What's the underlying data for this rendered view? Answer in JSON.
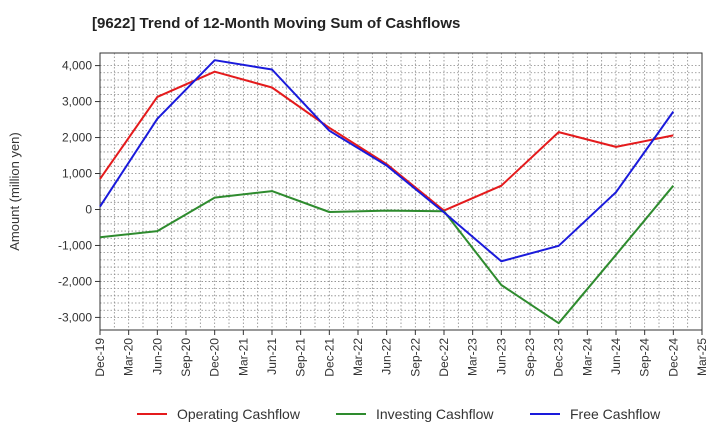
{
  "chart_data": {
    "type": "line",
    "title": "[9622]  Trend of 12-Month Moving Sum of Cashflows",
    "ylabel": "Amount (million yen)",
    "xlabel": "",
    "ylim": [
      -3350,
      4350
    ],
    "yticks": [
      4000,
      3000,
      2000,
      1000,
      0,
      -1000,
      -2000,
      -3000
    ],
    "ytick_labels": [
      "4,000",
      "3,000",
      "2,000",
      "1,000",
      "0",
      "-1,000",
      "-2,000",
      "-3,000"
    ],
    "categories": [
      "Dec-19",
      "Mar-20",
      "Jun-20",
      "Sep-20",
      "Dec-20",
      "Mar-21",
      "Jun-21",
      "Sep-21",
      "Dec-21",
      "Mar-22",
      "Jun-22",
      "Sep-22",
      "Dec-22",
      "Mar-23",
      "Jun-23",
      "Sep-23",
      "Dec-23",
      "Mar-24",
      "Jun-24",
      "Sep-24",
      "Dec-24",
      "Mar-25"
    ],
    "series": [
      {
        "name": "Operating Cashflow",
        "color": "#e41a1c",
        "values": [
          850,
          null,
          3130,
          null,
          3830,
          null,
          3390,
          null,
          2270,
          null,
          1260,
          null,
          -30,
          null,
          660,
          null,
          2150,
          null,
          1740,
          null,
          2060,
          null
        ]
      },
      {
        "name": "Investing Cashflow",
        "color": "#2e8b2e",
        "values": [
          -770,
          null,
          -600,
          null,
          330,
          null,
          510,
          null,
          -70,
          null,
          -30,
          null,
          -50,
          null,
          -2100,
          null,
          -3160,
          null,
          -1260,
          null,
          660,
          null
        ]
      },
      {
        "name": "Free Cashflow",
        "color": "#1a1adb",
        "values": [
          80,
          null,
          2520,
          null,
          4150,
          null,
          3890,
          null,
          2190,
          null,
          1220,
          null,
          -80,
          null,
          -1440,
          null,
          -1010,
          null,
          480,
          null,
          2720,
          null
        ]
      }
    ],
    "grid": true,
    "legend_position": "bottom"
  }
}
